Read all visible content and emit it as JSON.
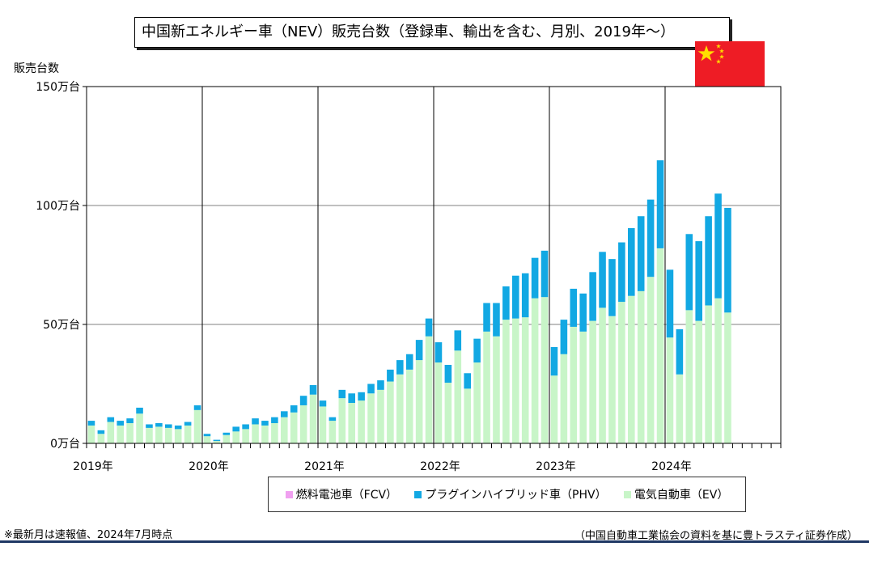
{
  "title": "中国新エネルギー車（NEV）販売台数（登録車、輸出を含む、月別、2019年～）",
  "ylabel": "販売台数",
  "legend": {
    "fcv": "燃料電池車（FCV）",
    "phv": "プラグインハイブリッド車（PHV）",
    "ev": "電気自動車（EV）"
  },
  "note": "※最新月は速報値、2024年7月時点",
  "source": "（中国自動車工業協会の資料を基に豊トラスティ証券作成）",
  "colors": {
    "ev": "#c8f5c8",
    "phv": "#12a8e3",
    "fcv": "#f0a0f0",
    "grid": "#808080",
    "flag_red": "#ee1c25",
    "flag_star": "#ffde00"
  },
  "chart_data": {
    "type": "bar",
    "stacked": true,
    "ylim": [
      0,
      150
    ],
    "yunit": "万台",
    "ytick_labels": [
      "0万台",
      "50万台",
      "100万台",
      "150万台"
    ],
    "year_labels": [
      "2019年",
      "2020年",
      "2021年",
      "2022年",
      "2023年",
      "2024年"
    ],
    "months_per_year": 12,
    "total_months": 72,
    "grid": true,
    "legend_position": "bottom",
    "series": [
      {
        "name": "電気自動車（EV）",
        "key": "ev",
        "values": [
          7.5,
          4.0,
          9.0,
          7.5,
          8.5,
          12.5,
          6.5,
          7.0,
          6.5,
          6.0,
          7.5,
          14.0,
          3.0,
          1.0,
          3.5,
          5.0,
          6.0,
          8.0,
          7.5,
          8.5,
          11.0,
          13.0,
          16.0,
          20.5,
          15.5,
          9.5,
          19.0,
          17.0,
          18.0,
          21.0,
          22.5,
          26.0,
          29.0,
          31.0,
          35.0,
          45.0,
          34.0,
          25.5,
          39.0,
          23.0,
          34.0,
          47.0,
          45.0,
          52.0,
          52.5,
          53.0,
          61.0,
          61.5,
          28.5,
          37.5,
          49.0,
          47.0,
          51.5,
          57.0,
          53.5,
          59.5,
          62.0,
          64.0,
          70.0,
          82.0,
          44.5,
          29.0,
          56.0,
          51.5,
          58.0,
          61.0,
          55.0
        ]
      },
      {
        "name": "プラグインハイブリッド車（PHV）",
        "key": "phv",
        "values": [
          2.0,
          1.5,
          2.0,
          2.0,
          2.0,
          2.5,
          1.5,
          1.5,
          1.5,
          1.5,
          1.5,
          2.0,
          1.0,
          0.5,
          1.0,
          2.0,
          2.0,
          2.5,
          2.0,
          2.5,
          2.5,
          3.0,
          4.0,
          4.0,
          2.5,
          1.5,
          3.5,
          4.0,
          3.5,
          4.0,
          4.0,
          5.0,
          6.0,
          6.5,
          8.5,
          7.5,
          8.5,
          7.5,
          8.5,
          6.5,
          10.0,
          12.0,
          14.0,
          14.0,
          18.0,
          18.5,
          17.0,
          19.5,
          12.0,
          14.5,
          16.0,
          16.0,
          20.5,
          23.5,
          24.0,
          25.0,
          28.5,
          31.5,
          32.5,
          37.0,
          28.5,
          19.0,
          32.0,
          33.5,
          37.5,
          44.0,
          44.0
        ]
      },
      {
        "name": "燃料電池車（FCV）",
        "key": "fcv",
        "values": [
          0,
          0,
          0,
          0,
          0,
          0,
          0,
          0,
          0,
          0,
          0,
          0,
          0,
          0,
          0,
          0,
          0,
          0,
          0,
          0,
          0,
          0,
          0,
          0,
          0,
          0,
          0,
          0,
          0,
          0,
          0,
          0,
          0,
          0,
          0,
          0,
          0,
          0,
          0,
          0,
          0,
          0,
          0,
          0,
          0,
          0,
          0,
          0,
          0,
          0,
          0,
          0,
          0,
          0,
          0,
          0,
          0,
          0,
          0,
          0,
          0,
          0,
          0,
          0,
          0,
          0,
          0
        ]
      }
    ]
  }
}
